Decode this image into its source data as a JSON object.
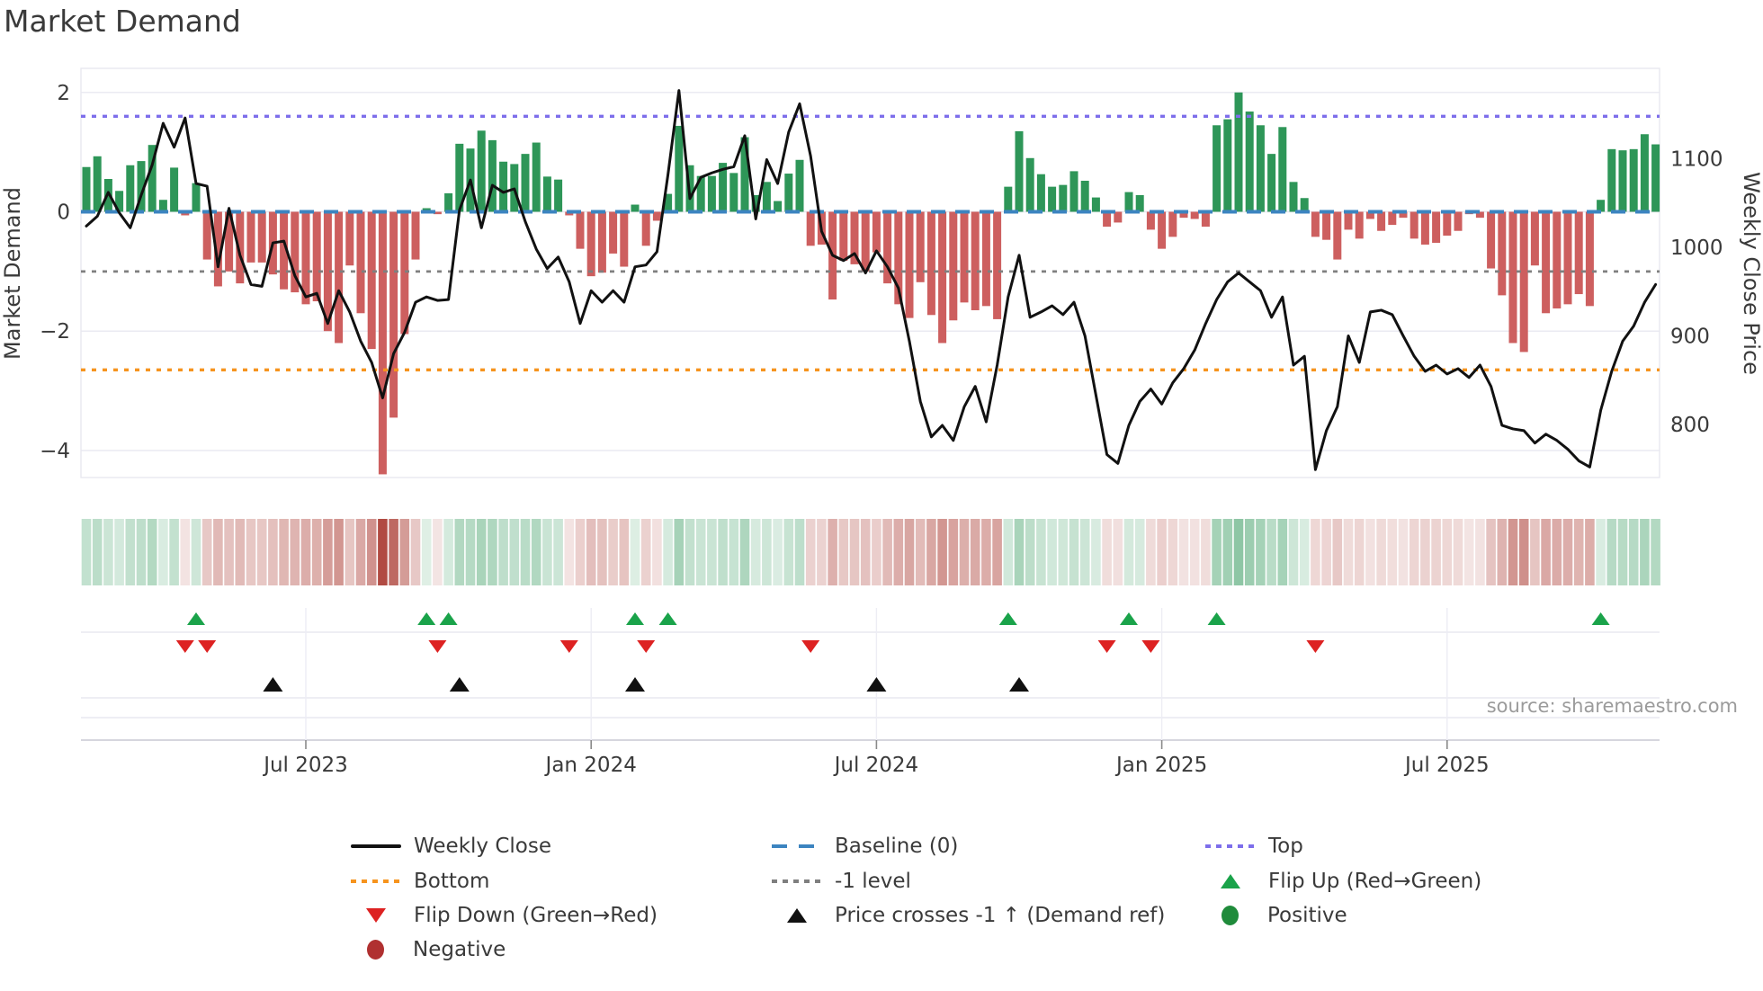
{
  "title": "Market Demand",
  "source": "source: sharemaestro.com",
  "colors": {
    "green_bar": "#2e9658",
    "red_bar": "#cd5f5f",
    "baseline": "#3c84c0",
    "top_line": "#7d6eeb",
    "bottom_line": "#f6941e",
    "minus_one_line": "#7f7f7f",
    "price_line": "#111111",
    "flip_up": "#1aa34a",
    "flip_down": "#dd2222",
    "price_cross": "#111111",
    "positive": "#1f8b3b",
    "negative": "#b03030",
    "grid": "#e8e8f0",
    "axis": "#c9c9d4"
  },
  "chart_data": {
    "type": "bar",
    "title": "Market Demand",
    "n_weeks": 144,
    "left_axis": {
      "label": "Market Demand",
      "ticks": [
        2,
        0,
        -2,
        -4
      ],
      "range": [
        -4.45,
        2.4
      ],
      "grid": true
    },
    "right_axis": {
      "label": "Weekly Close Price",
      "ticks": [
        1100,
        1000,
        900,
        800
      ],
      "range": [
        745,
        1180
      ]
    },
    "x_axis": {
      "tick_labels": [
        "Jul 2023",
        "Jan 2024",
        "Jul 2024",
        "Jan 2025",
        "Jul 2025"
      ],
      "tick_week_index": [
        20,
        46,
        72,
        98,
        124
      ]
    },
    "ref_lines": {
      "top": 1.6,
      "baseline": 0,
      "minus_one": -1,
      "bottom": -2.65
    },
    "legend_position": "bottom-center",
    "series": [
      {
        "name": "Demand",
        "type": "bar",
        "axis": "left",
        "values": [
          0.75,
          0.93,
          0.55,
          0.35,
          0.78,
          0.85,
          1.12,
          0.2,
          0.74,
          -0.06,
          0.48,
          -0.8,
          -1.25,
          -1.0,
          -1.2,
          -0.85,
          -0.85,
          -1.05,
          -1.3,
          -1.35,
          -1.55,
          -1.5,
          -2.0,
          -2.2,
          -0.9,
          -1.7,
          -2.3,
          -4.4,
          -3.45,
          -2.05,
          -0.8,
          0.06,
          -0.04,
          0.31,
          1.14,
          1.06,
          1.36,
          1.2,
          0.84,
          0.8,
          0.97,
          1.16,
          0.59,
          0.54,
          -0.06,
          -0.62,
          -1.08,
          -1.02,
          -0.7,
          -0.92,
          0.12,
          -0.57,
          -0.15,
          0.3,
          1.44,
          0.78,
          0.6,
          0.6,
          0.82,
          0.65,
          1.25,
          0.28,
          0.5,
          0.18,
          0.64,
          0.87,
          -0.57,
          -0.55,
          -1.47,
          -0.82,
          -0.88,
          -1.0,
          -0.68,
          -1.2,
          -1.55,
          -1.78,
          -1.18,
          -1.73,
          -2.2,
          -1.82,
          -1.52,
          -1.65,
          -1.58,
          -1.8,
          0.42,
          1.35,
          0.9,
          0.63,
          0.42,
          0.45,
          0.68,
          0.52,
          0.24,
          -0.25,
          -0.18,
          0.33,
          0.28,
          -0.3,
          -0.62,
          -0.42,
          -0.1,
          -0.12,
          -0.25,
          1.45,
          1.55,
          2.0,
          1.68,
          1.45,
          0.97,
          1.42,
          0.5,
          0.23,
          -0.42,
          -0.47,
          -0.8,
          -0.3,
          -0.45,
          -0.12,
          -0.32,
          -0.22,
          -0.1,
          -0.45,
          -0.55,
          -0.52,
          -0.4,
          -0.32,
          -0.04,
          -0.1,
          -0.95,
          -1.4,
          -2.2,
          -2.35,
          -0.9,
          -1.7,
          -1.62,
          -1.55,
          -1.38,
          -1.58,
          0.2,
          1.05,
          1.03,
          1.05,
          1.3,
          1.13
        ]
      },
      {
        "name": "Weekly Close",
        "type": "line",
        "axis": "right",
        "values": [
          1024,
          1035,
          1062,
          1039,
          1022,
          1059,
          1093,
          1140,
          1113,
          1146,
          1072,
          1069,
          978,
          1044,
          991,
          958,
          956,
          1005,
          1007,
          968,
          944,
          948,
          914,
          951,
          927,
          894,
          870,
          830,
          880,
          904,
          938,
          944,
          940,
          941,
          1042,
          1076,
          1022,
          1070,
          1062,
          1066,
          1029,
          998,
          976,
          989,
          961,
          914,
          951,
          938,
          951,
          938,
          978,
          980,
          995,
          1082,
          1177,
          1055,
          1079,
          1084,
          1088,
          1091,
          1126,
          1032,
          1099,
          1072,
          1130,
          1162,
          1103,
          1018,
          991,
          985,
          993,
          971,
          996,
          978,
          954,
          894,
          826,
          786,
          799,
          782,
          820,
          843,
          803,
          867,
          944,
          991,
          921,
          927,
          934,
          924,
          938,
          900,
          833,
          766,
          756,
          799,
          826,
          840,
          823,
          847,
          863,
          884,
          914,
          941,
          961,
          971,
          961,
          951,
          921,
          944,
          867,
          877,
          749,
          793,
          820,
          900,
          870,
          927,
          929,
          924,
          900,
          877,
          860,
          867,
          857,
          863,
          853,
          867,
          843,
          799,
          795,
          793,
          779,
          789,
          782,
          772,
          759,
          752,
          816,
          860,
          894,
          911,
          938,
          958
        ]
      }
    ],
    "heatmap_strip": {
      "source_series": "Demand",
      "encoding": "sign and magnitude of weekly demand (green positive, red negative)"
    },
    "markers": {
      "flip_up_weeks": [
        10,
        31,
        33,
        50,
        53,
        84,
        95,
        103,
        138
      ],
      "flip_down_weeks": [
        9,
        11,
        32,
        44,
        51,
        66,
        93,
        97,
        112
      ],
      "price_cross_weeks": [
        17,
        34,
        50,
        72,
        85
      ]
    }
  },
  "legend": {
    "items": [
      {
        "label": "Weekly Close",
        "icon": "black-line"
      },
      {
        "label": "Baseline (0)",
        "icon": "blue-dashed-line"
      },
      {
        "label": "Top",
        "icon": "purple-dotted-line"
      },
      {
        "label": "Bottom",
        "icon": "orange-dotted-line"
      },
      {
        "label": "-1 level",
        "icon": "gray-dotted-line"
      },
      {
        "label": "Flip Up (Red→Green)",
        "icon": "green-up-triangle"
      },
      {
        "label": "Flip Down (Green→Red)",
        "icon": "red-down-triangle"
      },
      {
        "label": "Price crosses -1 ↑ (Demand ref)",
        "icon": "black-up-triangle"
      },
      {
        "label": "Positive",
        "icon": "green-circle"
      },
      {
        "label": "Negative",
        "icon": "dark-red-circle"
      }
    ]
  }
}
